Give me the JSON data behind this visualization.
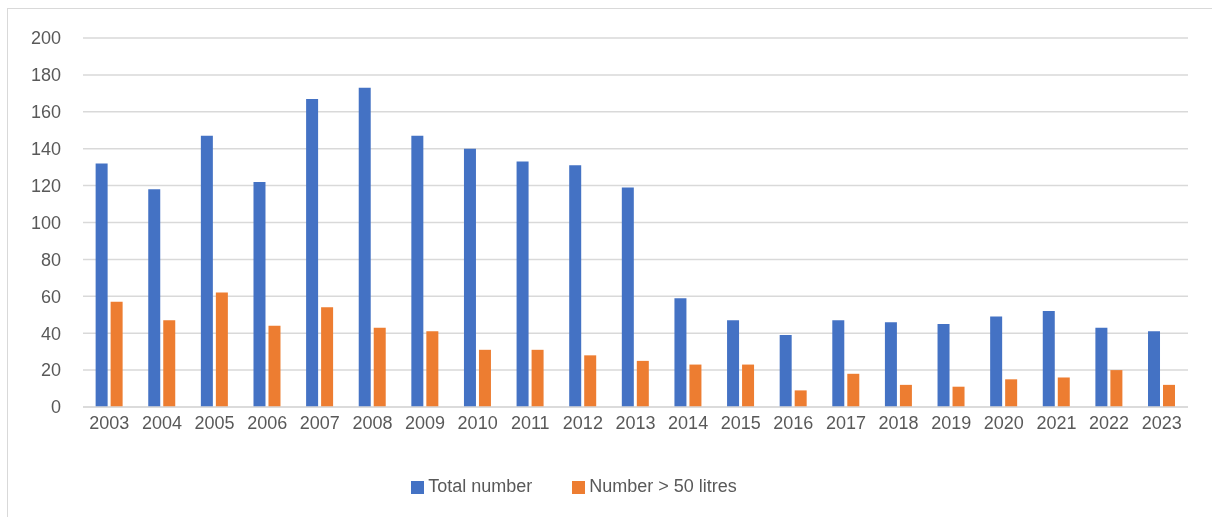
{
  "chart_data": {
    "type": "bar",
    "categories": [
      "2003",
      "2004",
      "2005",
      "2006",
      "2007",
      "2008",
      "2009",
      "2010",
      "2011",
      "2012",
      "2013",
      "2014",
      "2015",
      "2016",
      "2017",
      "2018",
      "2019",
      "2020",
      "2021",
      "2022",
      "2023"
    ],
    "series": [
      {
        "name": "Total number",
        "color": "#4472c4",
        "values": [
          132,
          118,
          147,
          122,
          167,
          173,
          147,
          140,
          133,
          131,
          119,
          59,
          47,
          39,
          47,
          46,
          45,
          49,
          52,
          43,
          41
        ]
      },
      {
        "name": "Number > 50 litres",
        "color": "#ed7d31",
        "values": [
          57,
          47,
          62,
          44,
          54,
          43,
          41,
          31,
          31,
          28,
          25,
          23,
          23,
          9,
          18,
          12,
          11,
          15,
          16,
          20,
          12
        ]
      }
    ],
    "ylim": [
      0,
      200
    ],
    "yticks": [
      0,
      20,
      40,
      60,
      80,
      100,
      120,
      140,
      160,
      180,
      200
    ],
    "grid": "y",
    "legend": "bottom"
  }
}
